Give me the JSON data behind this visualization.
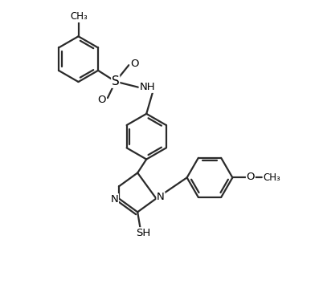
{
  "bg_color": "#ffffff",
  "line_color": "#2a2a2a",
  "line_width": 1.6,
  "text_color": "#000000",
  "figsize": [
    3.92,
    3.64
  ],
  "dpi": 100,
  "lw": 1.6,
  "ring_r": 0.72,
  "xlim": [
    0,
    9.8
  ],
  "ylim": [
    0,
    9.1
  ]
}
